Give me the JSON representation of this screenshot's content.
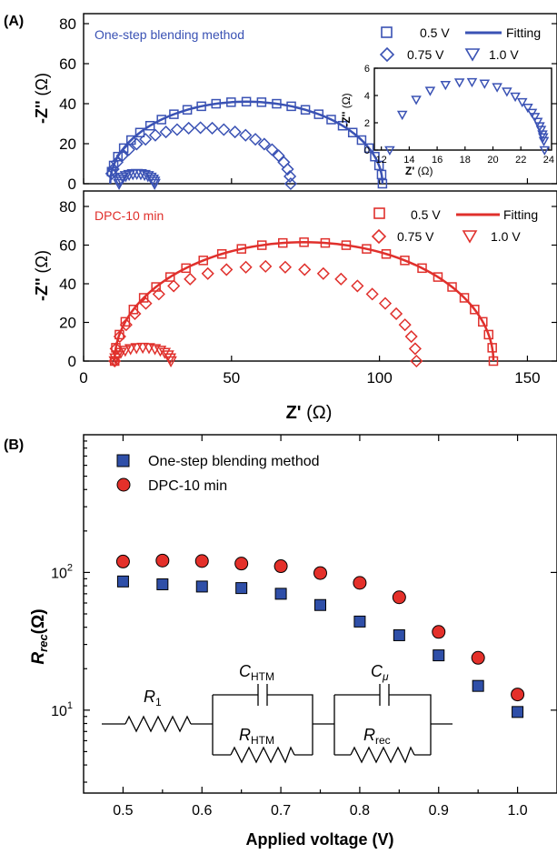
{
  "figure": {
    "panel_a_label": "(A)",
    "panel_b_label": "(B)"
  },
  "chart_data": [
    {
      "type": "scatter",
      "panel": "(A) top",
      "title": "One-step blending method",
      "xlabel": "",
      "ylabel_main": "-Z''",
      "ylabel_unit": " (Ω)",
      "xlim": [
        0,
        160
      ],
      "ylim": [
        0,
        85
      ],
      "x_ticks": [
        0,
        50,
        100,
        150
      ],
      "y_ticks": [
        0,
        20,
        40,
        60,
        80
      ],
      "color": "#3a52b4",
      "legend": [
        "0.5 V",
        "Fitting",
        "0.75 V",
        "1.0 V"
      ],
      "series": [
        {
          "name": "0.5 V",
          "marker": "square",
          "center": 55,
          "radius": 46,
          "start": 9.5,
          "end": 101,
          "ypeak": 41
        },
        {
          "name": "0.75 V",
          "marker": "diamond",
          "center": 39.5,
          "radius": 30.5,
          "start": 9.5,
          "end": 70,
          "ypeak": 28
        },
        {
          "name": "1.0 V",
          "marker": "triangle",
          "center": 18,
          "radius": 6,
          "start": 12,
          "end": 24,
          "ypeak": 5
        }
      ],
      "inset": {
        "xlabel_main": "Z'",
        "xlabel_unit": " (Ω)",
        "ylabel_main": "-Z''",
        "ylabel_unit": " (Ω)",
        "xlim": [
          11.5,
          24.2
        ],
        "ylim": [
          0,
          6
        ],
        "x_ticks": [
          12,
          14,
          16,
          18,
          20,
          22,
          24
        ],
        "y_ticks": [
          0,
          2,
          4,
          6
        ],
        "series": {
          "name": "1.0 V",
          "marker": "triangle",
          "center": 18.2,
          "radius": 5.5,
          "start": 12.6,
          "end": 23.7,
          "ypeak": 5
        }
      }
    },
    {
      "type": "scatter",
      "panel": "(A) bottom",
      "title": "DPC-10 min",
      "xlabel_main": "Z'",
      "xlabel_unit": " (Ω)",
      "ylabel_main": "-Z''",
      "ylabel_unit": " (Ω)",
      "xlim": [
        0,
        160
      ],
      "ylim": [
        0,
        88
      ],
      "x_ticks": [
        0,
        50,
        100,
        150
      ],
      "y_ticks": [
        0,
        20,
        40,
        60,
        80
      ],
      "color": "#e0302c",
      "legend": [
        "0.5 V",
        "Fitting",
        "0.75 V",
        "1.0 V"
      ],
      "series": [
        {
          "name": "0.5 V",
          "marker": "square",
          "center": 74.5,
          "radius": 64,
          "start": 10.5,
          "end": 138.5,
          "ypeak": 61.5
        },
        {
          "name": "0.75 V",
          "marker": "diamond",
          "center": 61.5,
          "radius": 51,
          "start": 10.5,
          "end": 112.5,
          "ypeak": 49
        },
        {
          "name": "1.0 V",
          "marker": "triangle",
          "center": 20,
          "radius": 9.5,
          "start": 10.5,
          "end": 29.5,
          "ypeak": 7
        }
      ]
    },
    {
      "type": "scatter",
      "panel": "(B)",
      "xlabel": "Applied voltage (V)",
      "ylabel_main": "R",
      "ylabel_sub": "rec",
      "ylabel_unit": "(Ω)",
      "yscale": "log",
      "xlim": [
        0.45,
        1.05
      ],
      "ylim": [
        2.5,
        1000
      ],
      "x_ticks": [
        0.5,
        0.6,
        0.7,
        0.8,
        0.9,
        1.0
      ],
      "x_tick_labels": [
        "0.5",
        "0.6",
        "0.7",
        "0.8",
        "0.9",
        "1.0"
      ],
      "y_tick_labels": [
        {
          "base": "10",
          "exp": "1",
          "value": 10
        },
        {
          "base": "10",
          "exp": "2",
          "value": 100
        }
      ],
      "x": [
        0.5,
        0.55,
        0.6,
        0.65,
        0.7,
        0.75,
        0.8,
        0.85,
        0.9,
        0.95,
        1.0
      ],
      "series": [
        {
          "name": "One-step blending method",
          "marker": "square",
          "color": "#2f4fa8",
          "values": [
            86,
            82,
            79,
            77,
            70,
            58,
            44,
            35,
            25,
            15,
            9.7
          ]
        },
        {
          "name": "DPC-10 min",
          "marker": "circle",
          "color": "#e4302a",
          "values": [
            120,
            122,
            121,
            116,
            111,
            99,
            84,
            66,
            37,
            24,
            13
          ]
        }
      ],
      "legend_position": "top-left",
      "circuit": {
        "r1_main": "R",
        "r1_sub": "1",
        "chtm_main": "C",
        "chtm_sub": "HTM",
        "rhtm_main": "R",
        "rhtm_sub": "HTM",
        "cmu_main": "C",
        "cmu_sub": "μ",
        "rrec_main": "R",
        "rrec_sub": "rec"
      }
    }
  ]
}
